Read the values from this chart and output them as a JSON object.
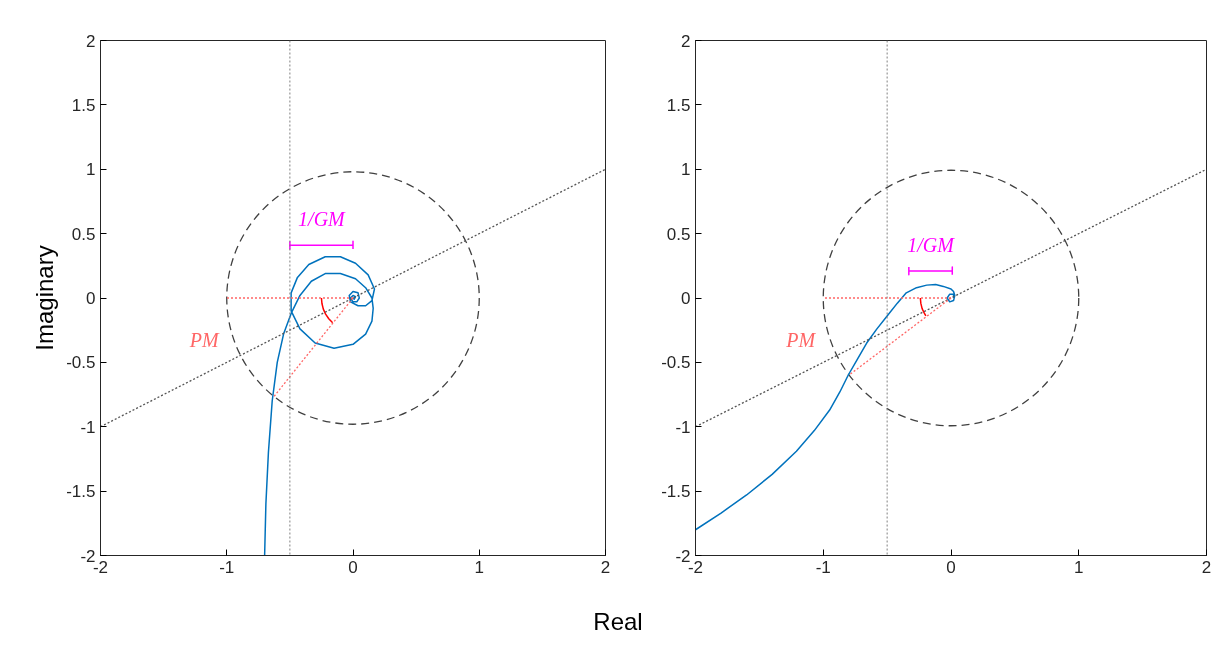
{
  "chart_data": [
    {
      "type": "line",
      "ylabel": "Imaginary",
      "xlabel": "Real",
      "xlim": [
        -2,
        2
      ],
      "ylim": [
        -2,
        2
      ],
      "xticks": [
        -2,
        -1,
        0,
        1,
        2
      ],
      "yticks": [
        -2,
        -1.5,
        -1,
        -0.5,
        0,
        0.5,
        1,
        1.5,
        2
      ],
      "grid": false,
      "legend": false,
      "series": [
        {
          "color": "#555555",
          "line_style": "dotted",
          "x": [
            -2,
            2
          ],
          "values": [
            -1,
            1
          ]
        },
        {
          "name": "PM",
          "color": "#ff6666",
          "line_style": "dotted",
          "x": [
            0,
            -1
          ],
          "values": [
            0,
            0
          ]
        },
        {
          "color": "#ff6666",
          "line_style": "dotted",
          "x": [
            0,
            -0.63
          ],
          "values": [
            0,
            -0.77
          ]
        },
        {
          "color": "#ff0000",
          "line_style": "solid",
          "x": [
            -0.25,
            -0.246,
            -0.235,
            -0.217,
            -0.192,
            -0.161
          ],
          "values": [
            0,
            -0.043,
            -0.086,
            -0.125,
            -0.161,
            -0.192
          ]
        },
        {
          "name": "1/GM",
          "color": "#ff00ff",
          "line_style": "solid",
          "x": [
            -0.5,
            -0.5,
            -0.5,
            0,
            0,
            0
          ],
          "values": [
            0.44,
            0.38,
            0.41,
            0.41,
            0.44,
            0.38
          ]
        },
        {
          "color": "#0072bd",
          "line_style": "solid",
          "x": [
            -0.7,
            -0.69,
            -0.67,
            -0.64,
            -0.6,
            -0.55,
            -0.49,
            -0.42,
            -0.33,
            -0.22,
            -0.1,
            0.02,
            0.1,
            0.15,
            0.16,
            0.15,
            0.1,
            0.0,
            -0.15,
            -0.3,
            -0.42,
            -0.49,
            -0.49,
            -0.44,
            -0.35,
            -0.22,
            -0.1,
            0.02,
            0.12,
            0.17,
            0.15,
            0.1,
            0.04,
            -0.02,
            -0.03,
            0.0,
            0.04,
            0.05,
            0.03,
            0.0,
            -0.02,
            0.0,
            0.02,
            0.01,
            0.0
          ],
          "values": [
            -2.0,
            -1.6,
            -1.2,
            -0.8,
            -0.5,
            -0.28,
            -0.12,
            0.02,
            0.13,
            0.19,
            0.19,
            0.15,
            0.08,
            0.0,
            -0.08,
            -0.18,
            -0.28,
            -0.36,
            -0.39,
            -0.35,
            -0.24,
            -0.1,
            0.04,
            0.16,
            0.26,
            0.32,
            0.32,
            0.27,
            0.18,
            0.07,
            -0.02,
            -0.06,
            -0.06,
            -0.03,
            0.02,
            0.05,
            0.04,
            0.0,
            -0.03,
            -0.03,
            0.0,
            0.02,
            0.01,
            -0.01,
            0.0
          ]
        }
      ],
      "ref_lines": [
        {
          "axis": "x",
          "value": -0.5,
          "color": "#808080",
          "line_style": "dotted"
        }
      ]
    },
    {
      "type": "line",
      "xlim": [
        -2,
        2
      ],
      "ylim": [
        -2,
        2
      ],
      "xticks": [
        -2,
        -1,
        0,
        1,
        2
      ],
      "yticks": [
        -2,
        -1.5,
        -1,
        -0.5,
        0,
        0.5,
        1,
        1.5,
        2
      ],
      "grid": false,
      "legend": false,
      "series": [
        {
          "color": "#555555",
          "line_style": "dotted",
          "x": [
            -2,
            2
          ],
          "values": [
            -1,
            1
          ]
        },
        {
          "name": "PM",
          "color": "#ff6666",
          "line_style": "dotted",
          "x": [
            0,
            -1
          ],
          "values": [
            0,
            0
          ]
        },
        {
          "color": "#ff6666",
          "line_style": "dotted",
          "x": [
            0,
            -0.8
          ],
          "values": [
            0,
            -0.6
          ]
        },
        {
          "color": "#ff0000",
          "line_style": "solid",
          "x": [
            -0.24,
            -0.236,
            -0.226,
            -0.208,
            -0.197
          ],
          "values": [
            0,
            -0.042,
            -0.082,
            -0.12,
            -0.138
          ]
        },
        {
          "name": "1/GM",
          "color": "#ff00ff",
          "line_style": "solid",
          "x": [
            -0.33,
            -0.33,
            -0.33,
            0.01,
            0.01,
            0.01
          ],
          "values": [
            0.24,
            0.18,
            0.21,
            0.21,
            0.24,
            0.18
          ]
        },
        {
          "color": "#0072bd",
          "line_style": "solid",
          "x": [
            -2.0,
            -1.8,
            -1.6,
            -1.4,
            -1.21,
            -1.07,
            -0.95,
            -0.87,
            -0.805,
            -0.73,
            -0.66,
            -0.58,
            -0.5,
            -0.42,
            -0.35,
            -0.27,
            -0.19,
            -0.12,
            -0.06,
            0.0,
            0.02,
            0.03,
            0.02,
            -0.01,
            -0.03,
            -0.01,
            0.02,
            0.02
          ],
          "values": [
            -1.8,
            -1.67,
            -1.53,
            -1.37,
            -1.19,
            -1.03,
            -0.87,
            -0.73,
            -0.6,
            -0.47,
            -0.35,
            -0.24,
            -0.14,
            -0.04,
            0.04,
            0.08,
            0.1,
            0.105,
            0.09,
            0.07,
            0.05,
            0.02,
            -0.02,
            -0.03,
            0.0,
            0.03,
            0.03,
            0.0
          ]
        }
      ],
      "ref_lines": [
        {
          "axis": "x",
          "value": -0.5,
          "color": "#808080",
          "line_style": "dotted"
        }
      ]
    }
  ]
}
